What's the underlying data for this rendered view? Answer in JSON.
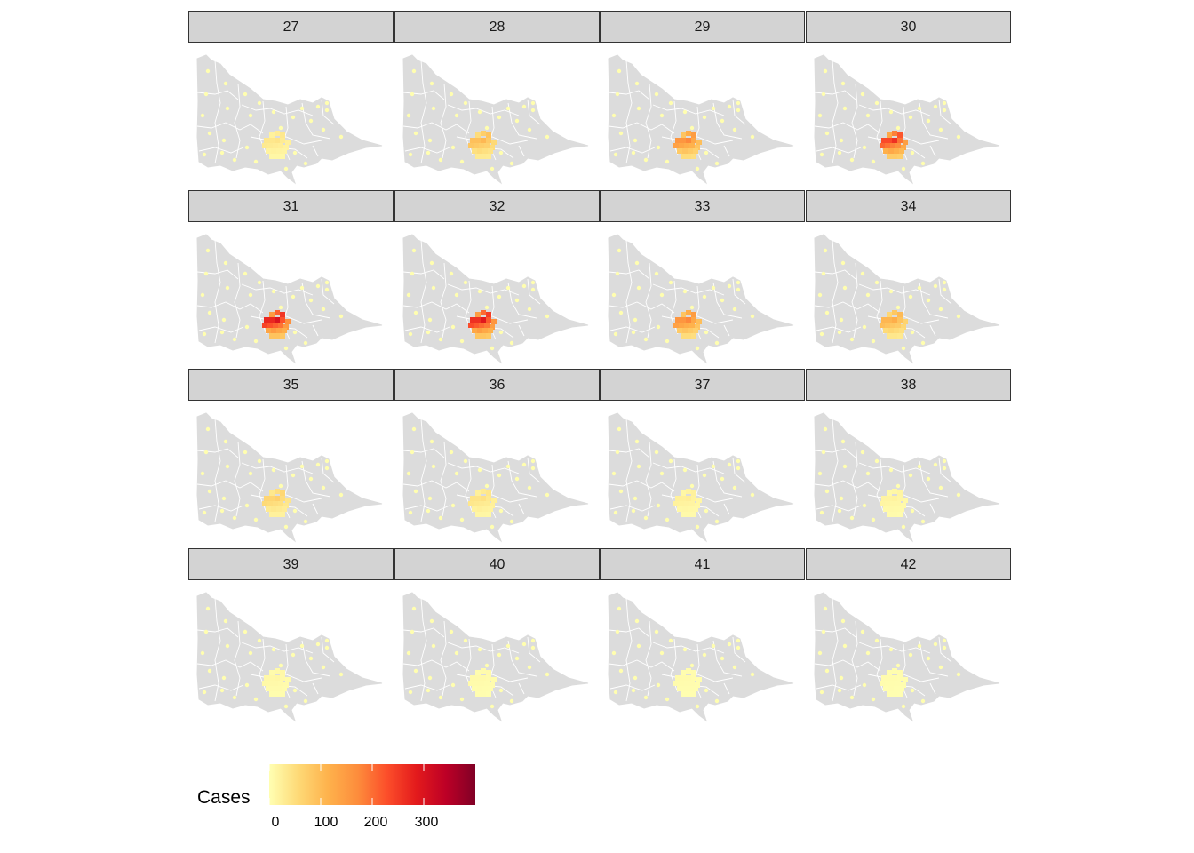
{
  "panels": [
    {
      "week": "27",
      "hotspot": 40
    },
    {
      "week": "28",
      "hotspot": 105
    },
    {
      "week": "29",
      "hotspot": 175
    },
    {
      "week": "30",
      "hotspot": 260
    },
    {
      "week": "31",
      "hotspot": 300
    },
    {
      "week": "32",
      "hotspot": 290
    },
    {
      "week": "33",
      "hotspot": 175
    },
    {
      "week": "34",
      "hotspot": 120
    },
    {
      "week": "35",
      "hotspot": 70
    },
    {
      "week": "36",
      "hotspot": 45
    },
    {
      "week": "37",
      "hotspot": 25
    },
    {
      "week": "38",
      "hotspot": 18
    },
    {
      "week": "39",
      "hotspot": 12
    },
    {
      "week": "40",
      "hotspot": 8
    },
    {
      "week": "41",
      "hotspot": 6
    },
    {
      "week": "42",
      "hotspot": 5
    }
  ],
  "legend": {
    "title": "Cases",
    "ticks": [
      "0",
      "100",
      "200",
      "300"
    ],
    "tick_values": [
      0,
      100,
      200,
      300
    ],
    "max_value": 400,
    "palette": [
      "#ffffb2",
      "#fed976",
      "#feb24c",
      "#fd8d3c",
      "#fc4e2a",
      "#e31a1c",
      "#bd0026",
      "#800026"
    ]
  },
  "colors": {
    "land": "#dcdcdc",
    "borders": "#ffffff",
    "strip": "#d3d3d3"
  }
}
